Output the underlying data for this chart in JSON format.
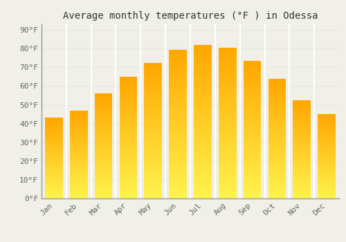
{
  "title": "Average monthly temperatures (°F ) in Odessa",
  "months": [
    "Jan",
    "Feb",
    "Mar",
    "Apr",
    "May",
    "Jun",
    "Jul",
    "Aug",
    "Sep",
    "Oct",
    "Nov",
    "Dec"
  ],
  "values": [
    43,
    47,
    56,
    65,
    72.5,
    79.5,
    82,
    80.5,
    73.5,
    64,
    52.5,
    45
  ],
  "bar_color_top": "#FFA500",
  "bar_color_bottom": "#FFD580",
  "ylim": [
    0,
    93
  ],
  "yticks": [
    0,
    10,
    20,
    30,
    40,
    50,
    60,
    70,
    80,
    90
  ],
  "ytick_labels": [
    "0°F",
    "10°F",
    "20°F",
    "30°F",
    "40°F",
    "50°F",
    "60°F",
    "70°F",
    "80°F",
    "90°F"
  ],
  "background_color": "#f0f0e8",
  "grid_color": "#e8e8e0",
  "title_fontsize": 10,
  "tick_fontsize": 8,
  "font_family": "monospace",
  "title_color": "#333333",
  "tick_color": "#666666"
}
